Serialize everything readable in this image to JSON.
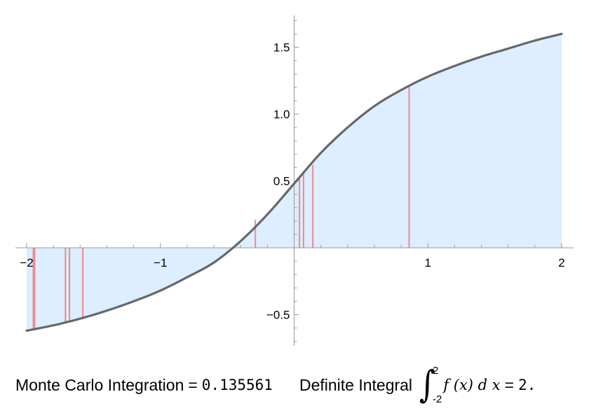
{
  "chart_data": {
    "type": "area",
    "title": "",
    "xlabel": "",
    "ylabel": "",
    "xlim": [
      -2,
      2
    ],
    "ylim": [
      -0.72,
      1.72
    ],
    "grid": false,
    "x_ticks": [
      {
        "value": -2,
        "label": "−2"
      },
      {
        "value": -1,
        "label": "−1"
      },
      {
        "value": 1,
        "label": "1"
      },
      {
        "value": 2,
        "label": "2"
      }
    ],
    "y_ticks": [
      {
        "value": -0.5,
        "label": "−0.5"
      },
      {
        "value": 0.5,
        "label": "0.5"
      },
      {
        "value": 1.0,
        "label": "1.0"
      },
      {
        "value": 1.5,
        "label": "1.5"
      }
    ],
    "curve": {
      "x": [
        -2.0,
        -1.8,
        -1.6,
        -1.4,
        -1.2,
        -1.0,
        -0.8,
        -0.6,
        -0.4,
        -0.2,
        0.0,
        0.2,
        0.4,
        0.6,
        0.8,
        1.0,
        1.2,
        1.4,
        1.6,
        1.8,
        2.0
      ],
      "y": [
        -0.62,
        -0.58,
        -0.53,
        -0.47,
        -0.4,
        -0.32,
        -0.22,
        -0.11,
        0.05,
        0.25,
        0.48,
        0.71,
        0.9,
        1.06,
        1.18,
        1.28,
        1.36,
        1.43,
        1.49,
        1.55,
        1.6
      ],
      "line_color": "#65686b",
      "fill_color": "#dceeff"
    },
    "samples": {
      "color": "#f08a8a",
      "points": [
        {
          "x": -1.95,
          "y": -0.61
        },
        {
          "x": -1.94,
          "y": -0.61
        },
        {
          "x": -1.71,
          "y": -0.56
        },
        {
          "x": -1.68,
          "y": -0.55
        },
        {
          "x": -1.58,
          "y": -0.52
        },
        {
          "x": -0.29,
          "y": 0.21
        },
        {
          "x": 0.04,
          "y": 0.52
        },
        {
          "x": 0.07,
          "y": 0.55
        },
        {
          "x": 0.14,
          "y": 0.62
        },
        {
          "x": 0.86,
          "y": 1.21
        }
      ]
    }
  },
  "caption": {
    "mc_label": "Monte Carlo Integration",
    "equals": "=",
    "mc_value": "0.135561",
    "integral_label": "Definite Integral",
    "upper_limit": "2",
    "lower_limit": "-2",
    "integrand": "f (x) d x",
    "integral_value": "2."
  }
}
